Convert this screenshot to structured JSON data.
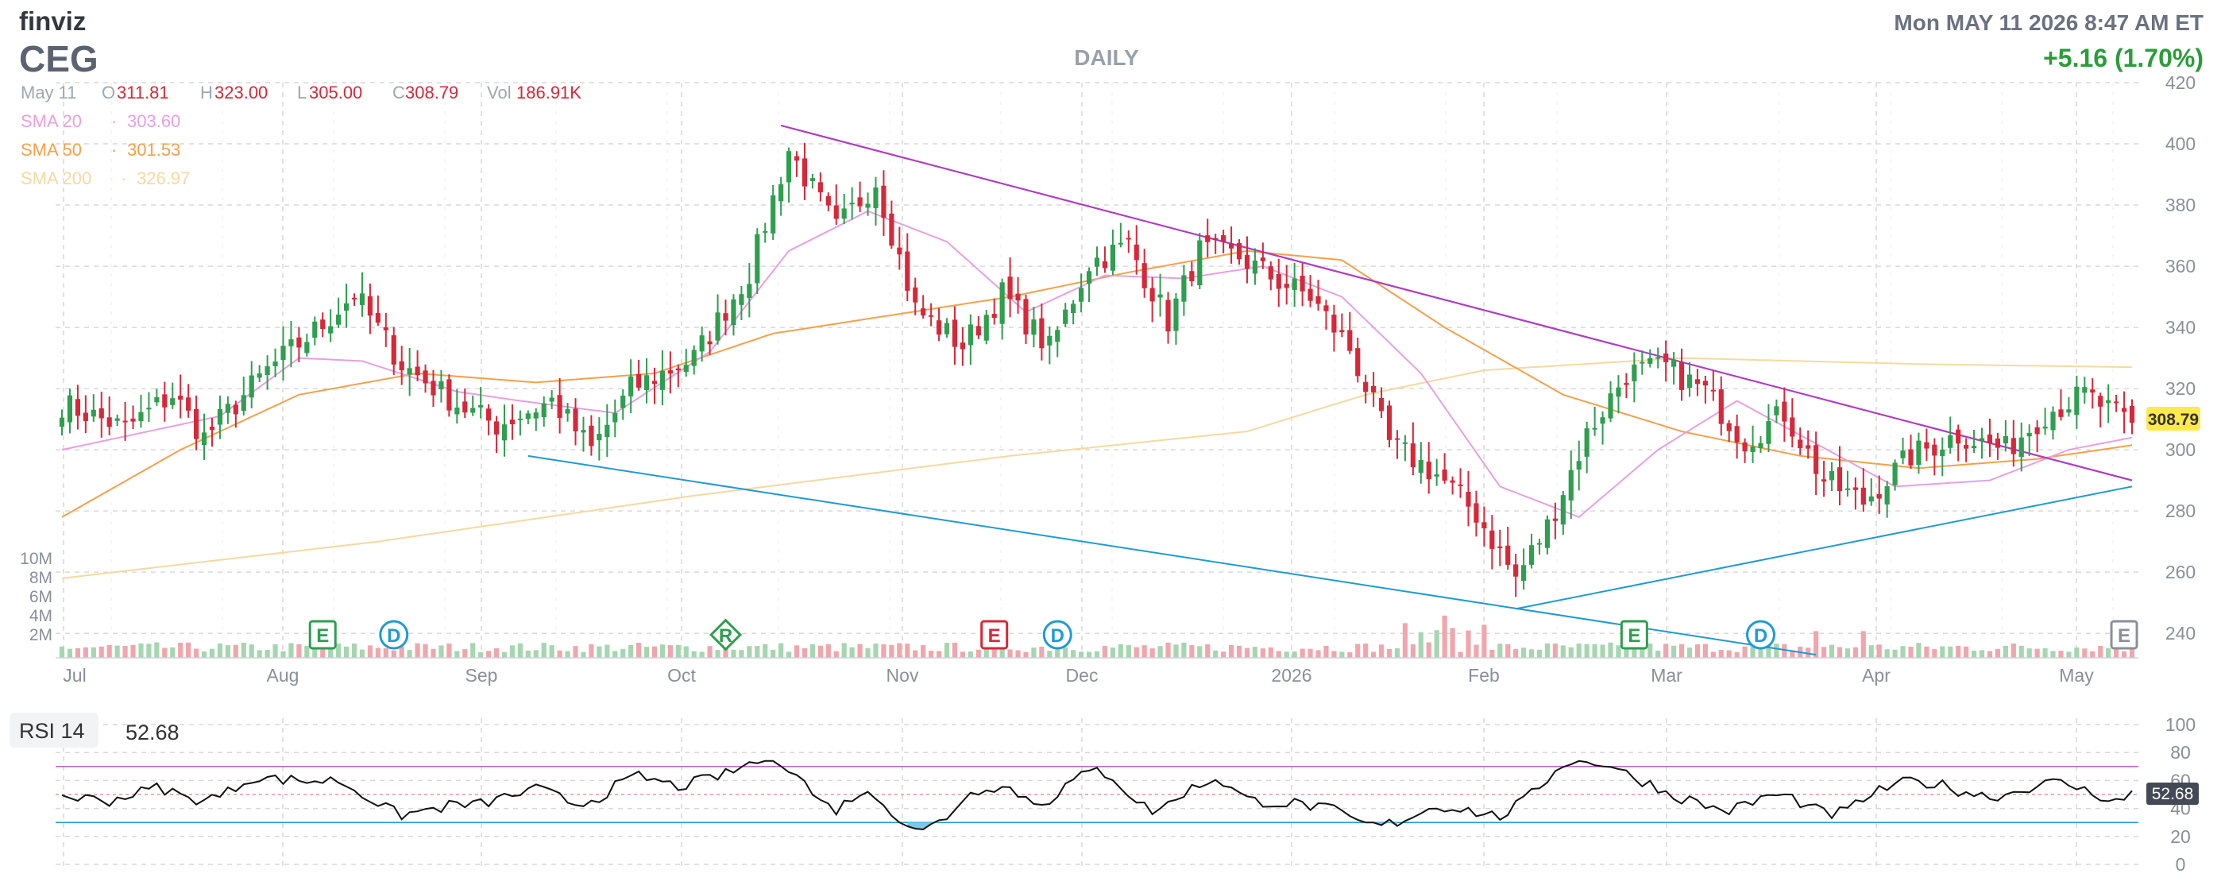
{
  "header": {
    "brand": "finviz",
    "ticker": "CEG",
    "timeframe": "DAILY",
    "datetime": "Mon MAY 11 2026 8:47 AM ET",
    "change": "+5.16 (1.70%)"
  },
  "ohlc": {
    "date": "May 11",
    "o_label": "O",
    "o": "311.81",
    "h_label": "H",
    "h": "323.00",
    "l_label": "L",
    "l": "305.00",
    "c_label": "C",
    "c": "308.79",
    "vol_label": "Vol",
    "vol": "186.91K"
  },
  "legend": [
    {
      "label": "SMA 20",
      "sep": "·",
      "value": "303.60",
      "color": "#e8a0e0"
    },
    {
      "label": "SMA 50",
      "sep": "·",
      "value": "301.53",
      "color": "#f5a04a"
    },
    {
      "label": "SMA 200",
      "sep": "·",
      "value": "326.97",
      "color": "#f5d9a0"
    }
  ],
  "colors": {
    "up": "#2e9e4f",
    "down": "#d62839",
    "vol_up": "#a6d6b0",
    "vol_down": "#f0a6ac",
    "sma20": "#e8a0e0",
    "sma50": "#f5a04a",
    "sma200": "#f5d9a0",
    "trend_purple": "#b03cc4",
    "trend_blue": "#1e9bd6",
    "grid": "#d9d9d9",
    "axis_text": "#8a8f99",
    "price_tag": "#ffe94d"
  },
  "last_price_tag": "308.79",
  "rsi": {
    "label": "RSI 14",
    "value": "52.68",
    "levels": [
      "100",
      "80",
      "60",
      "40",
      "20",
      "0"
    ],
    "overbought": 70,
    "oversold": 30
  },
  "chart_data": {
    "type": "candlestick",
    "title": "",
    "price_axis": {
      "ticks": [
        "420",
        "400",
        "380",
        "360",
        "340",
        "320",
        "300",
        "280",
        "260",
        "240"
      ],
      "range": [
        232,
        420
      ]
    },
    "volume_axis": {
      "ticks": [
        "10M",
        "8M",
        "6M",
        "4M",
        "2M"
      ]
    },
    "x_labels": [
      "Jul",
      "Aug",
      "Sep",
      "Oct",
      "Nov",
      "Dec",
      "2026",
      "Feb",
      "Mar",
      "Apr",
      "May"
    ],
    "waypoints": [
      [
        0,
        315
      ],
      [
        8,
        307
      ],
      [
        14,
        318
      ],
      [
        18,
        304
      ],
      [
        26,
        326
      ],
      [
        33,
        341
      ],
      [
        37,
        351
      ],
      [
        43,
        328
      ],
      [
        50,
        315
      ],
      [
        55,
        308
      ],
      [
        62,
        316
      ],
      [
        67,
        300
      ],
      [
        72,
        320
      ],
      [
        80,
        330
      ],
      [
        87,
        358
      ],
      [
        92,
        398
      ],
      [
        98,
        372
      ],
      [
        103,
        388
      ],
      [
        108,
        346
      ],
      [
        114,
        334
      ],
      [
        119,
        351
      ],
      [
        125,
        333
      ],
      [
        130,
        361
      ],
      [
        135,
        367
      ],
      [
        140,
        342
      ],
      [
        144,
        365
      ],
      [
        149,
        363
      ],
      [
        154,
        355
      ],
      [
        158,
        350
      ],
      [
        163,
        333
      ],
      [
        168,
        302
      ],
      [
        174,
        292
      ],
      [
        179,
        279
      ],
      [
        184,
        258
      ],
      [
        188,
        275
      ],
      [
        193,
        305
      ],
      [
        198,
        325
      ],
      [
        203,
        327
      ],
      [
        208,
        319
      ],
      [
        213,
        303
      ],
      [
        218,
        312
      ],
      [
        223,
        290
      ],
      [
        228,
        283
      ],
      [
        234,
        298
      ],
      [
        240,
        305
      ],
      [
        246,
        300
      ],
      [
        251,
        312
      ],
      [
        256,
        318
      ],
      [
        262,
        308
      ]
    ],
    "sma20_points": [
      [
        0,
        300
      ],
      [
        20,
        311
      ],
      [
        30,
        330
      ],
      [
        38,
        329
      ],
      [
        50,
        319
      ],
      [
        58,
        316
      ],
      [
        70,
        312
      ],
      [
        82,
        332
      ],
      [
        92,
        365
      ],
      [
        102,
        378
      ],
      [
        112,
        368
      ],
      [
        122,
        345
      ],
      [
        132,
        357
      ],
      [
        142,
        356
      ],
      [
        152,
        360
      ],
      [
        162,
        350
      ],
      [
        172,
        325
      ],
      [
        182,
        288
      ],
      [
        192,
        278
      ],
      [
        202,
        300
      ],
      [
        212,
        316
      ],
      [
        222,
        302
      ],
      [
        232,
        288
      ],
      [
        244,
        290
      ],
      [
        254,
        300
      ],
      [
        262,
        304
      ]
    ],
    "sma50_points": [
      [
        0,
        278
      ],
      [
        15,
        300
      ],
      [
        30,
        318
      ],
      [
        45,
        325
      ],
      [
        60,
        322
      ],
      [
        75,
        325
      ],
      [
        90,
        338
      ],
      [
        105,
        344
      ],
      [
        120,
        350
      ],
      [
        135,
        358
      ],
      [
        150,
        365
      ],
      [
        162,
        362
      ],
      [
        175,
        340
      ],
      [
        190,
        318
      ],
      [
        205,
        306
      ],
      [
        220,
        298
      ],
      [
        235,
        294
      ],
      [
        250,
        297
      ],
      [
        262,
        301.5
      ]
    ],
    "sma200_points": [
      [
        0,
        258
      ],
      [
        40,
        270
      ],
      [
        80,
        285
      ],
      [
        120,
        298
      ],
      [
        150,
        306
      ],
      [
        165,
        318
      ],
      [
        180,
        326
      ],
      [
        205,
        330
      ],
      [
        235,
        328
      ],
      [
        262,
        327
      ]
    ],
    "trendlines": [
      {
        "color": "purple",
        "from": [
          91,
          406
        ],
        "to": [
          262,
          290
        ]
      },
      {
        "color": "purple",
        "from": [
          91,
          406
        ],
        "to": [
          262,
          290
        ]
      },
      {
        "color": "blue",
        "from": [
          59,
          298
        ],
        "to": [
          222,
          233
        ]
      },
      {
        "color": "blue",
        "from": [
          184,
          248
        ],
        "to": [
          262,
          288
        ]
      }
    ],
    "events": [
      {
        "type": "E",
        "index": 33,
        "style": "green"
      },
      {
        "type": "D",
        "index": 42,
        "style": "blue"
      },
      {
        "type": "R",
        "index": 84,
        "style": "green"
      },
      {
        "type": "E",
        "index": 118,
        "style": "red"
      },
      {
        "type": "D",
        "index": 126,
        "style": "blue"
      },
      {
        "type": "E",
        "index": 199,
        "style": "green"
      },
      {
        "type": "D",
        "index": 215,
        "style": "blue"
      },
      {
        "type": "E",
        "index": 261,
        "style": "gray"
      }
    ],
    "last_close": 308.79
  }
}
